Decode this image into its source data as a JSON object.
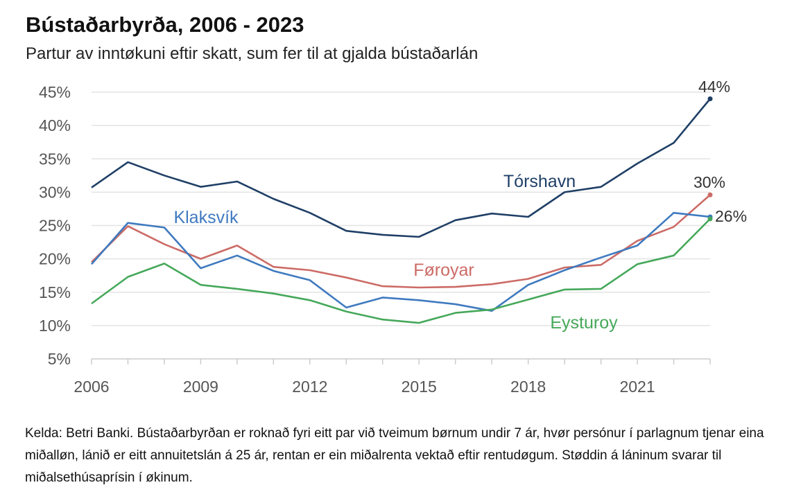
{
  "chart_data": {
    "type": "line",
    "title": "Bústaðarbyrða, 2006 - 2023",
    "subtitle": "Partur av inntøkuni eftir skatt, sum fer til at gjalda bústaðarlán",
    "xlabel": "",
    "ylabel": "",
    "x": [
      2006,
      2007,
      2008,
      2009,
      2010,
      2011,
      2012,
      2013,
      2014,
      2015,
      2016,
      2017,
      2018,
      2019,
      2020,
      2021,
      2022,
      2023
    ],
    "xticks": [
      "2006",
      "2009",
      "2012",
      "2015",
      "2018",
      "2021"
    ],
    "yticks": [
      "5%",
      "10%",
      "15%",
      "20%",
      "25%",
      "30%",
      "35%",
      "40%",
      "45%"
    ],
    "ylim": [
      5,
      45
    ],
    "grid": true,
    "series": [
      {
        "name": "Tórshavn",
        "color": "#1f3f66",
        "end_label": "44%",
        "values": [
          30.7,
          34.5,
          32.5,
          30.8,
          31.6,
          29.0,
          26.9,
          24.2,
          23.6,
          23.3,
          25.8,
          26.8,
          26.3,
          30.0,
          30.8,
          34.3,
          37.4,
          44.0
        ]
      },
      {
        "name": "Klaksvík",
        "color": "#3f7abf",
        "end_label": "26%",
        "values": [
          19.2,
          25.4,
          24.7,
          18.6,
          20.5,
          18.2,
          16.8,
          12.7,
          14.2,
          13.8,
          13.2,
          12.2,
          16.1,
          18.3,
          20.2,
          22.0,
          26.9,
          26.3
        ]
      },
      {
        "name": "Føroyar",
        "color": "#cc6b66",
        "end_label": "30%",
        "values": [
          19.5,
          24.9,
          22.2,
          20.0,
          22.0,
          18.8,
          18.3,
          17.2,
          15.9,
          15.7,
          15.8,
          16.2,
          17.0,
          18.7,
          19.1,
          22.7,
          24.8,
          29.6
        ]
      },
      {
        "name": "Eysturoy",
        "color": "#45a85a",
        "end_label": "",
        "values": [
          13.3,
          17.3,
          19.3,
          16.1,
          15.5,
          14.8,
          13.8,
          12.1,
          10.9,
          10.4,
          11.9,
          12.4,
          13.9,
          15.4,
          15.5,
          19.2,
          20.5,
          26.0
        ]
      }
    ]
  },
  "note": "Kelda: Betri Banki. Bústaðarbyrðan er roknað fyri eitt par við tveimum børnum undir 7 ár, hvør persónur í parlagnum tjenar eina miðalløn, lánið er eitt annuitetslán á 25 ár, rentan er ein miðalrenta vektað eftir rentudøgum. Støddin á láninum svarar til miðalsethúsaprísin í økinum."
}
